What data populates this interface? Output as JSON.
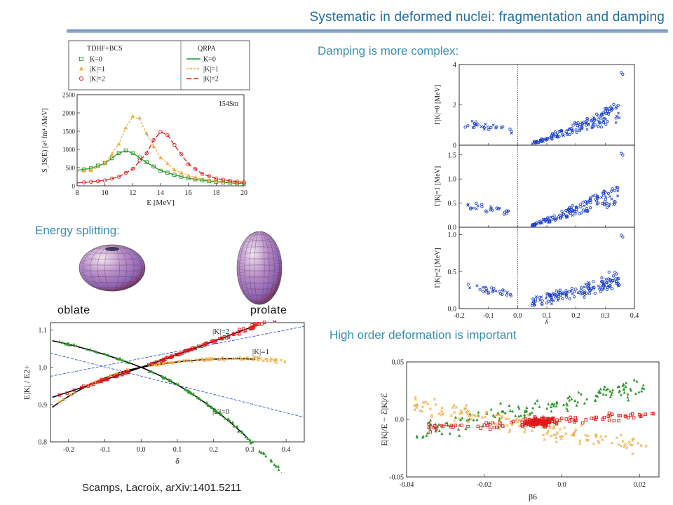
{
  "slide": {
    "title": "Systematic in deformed nuclei: fragmentation and damping",
    "damping_heading": "Damping is more complex:",
    "energy_heading": "Energy splitting:",
    "high_order_heading": "High order deformation is important",
    "oblate_label": "oblate",
    "prolate_label": "prolate",
    "citation": "Scamps, Lacroix, arXiv:1401.5211"
  },
  "colors": {
    "title": "#1f6ea0",
    "heading": "#3b8fb0",
    "k0": "#2a9a2a",
    "k1": "#f2a93a",
    "k2": "#e01818",
    "blue": "#1a3fd0"
  },
  "chart_data": [
    {
      "type": "line",
      "nucleus": "154Sm",
      "xlabel": "E [MeV]",
      "ylabel": "S_IS(E) [e² fm⁴ /MeV]",
      "xlim": [
        8,
        20
      ],
      "ylim": [
        0,
        2500
      ],
      "xticks": [
        8,
        10,
        12,
        14,
        16,
        18,
        20
      ],
      "yticks": [
        0,
        500,
        1000,
        1500,
        2000,
        2500
      ],
      "legend": {
        "tdhf_title": "TDHF+BCS",
        "qrpa_title": "QRPA",
        "k0": "K=0",
        "k1": "|K|=1",
        "k2": "|K|=2"
      },
      "series": [
        {
          "name": "K=0",
          "x": [
            8,
            9,
            10,
            11,
            11.5,
            12,
            13,
            14,
            15,
            16,
            17,
            18,
            19,
            20
          ],
          "values": [
            430,
            480,
            620,
            900,
            960,
            900,
            640,
            420,
            300,
            210,
            150,
            110,
            80,
            60
          ]
        },
        {
          "name": "|K|=1",
          "x": [
            8,
            9,
            10,
            11,
            11.5,
            12,
            12.5,
            13,
            14,
            15,
            16,
            17,
            18,
            19,
            20
          ],
          "values": [
            380,
            420,
            620,
            1150,
            1600,
            1900,
            1820,
            1420,
            780,
            440,
            280,
            190,
            130,
            100,
            80
          ]
        },
        {
          "name": "|K|=2",
          "x": [
            8,
            9,
            10,
            11,
            12,
            13,
            13.5,
            14,
            14.5,
            15,
            16,
            17,
            18,
            19,
            20
          ],
          "values": [
            80,
            110,
            150,
            250,
            460,
            900,
            1250,
            1480,
            1400,
            1120,
            600,
            330,
            200,
            140,
            100
          ]
        }
      ]
    },
    {
      "type": "scatter",
      "xlabel": "δ",
      "xlim": [
        -0.2,
        0.4
      ],
      "xticks": [
        -0.2,
        -0.1,
        0.0,
        0.1,
        0.2,
        0.3,
        0.4
      ],
      "panels": [
        {
          "ylabel": "Γ|K|=0 [MeV]",
          "ylim": [
            0,
            4
          ],
          "yticks": [
            0,
            2,
            4
          ]
        },
        {
          "ylabel": "Γ|K|=1 [MeV]",
          "ylim": [
            0,
            1.7
          ],
          "yticks": [
            0.0,
            0.5,
            1.0,
            1.5
          ]
        },
        {
          "ylabel": "Γ|K|=2 [MeV]",
          "ylim": [
            0,
            1.1
          ],
          "yticks": [
            0.0,
            0.5,
            1.0
          ]
        }
      ]
    },
    {
      "type": "scatter",
      "xlabel": "δ",
      "ylabel": "E|K| / E2+",
      "xlim": [
        -0.25,
        0.45
      ],
      "ylim": [
        0.8,
        1.12
      ],
      "xticks": [
        -0.2,
        -0.1,
        0.0,
        0.1,
        0.2,
        0.3,
        0.4
      ],
      "yticks": [
        0.8,
        0.9,
        1.0,
        1.1
      ],
      "annotations": [
        "|K|=2",
        "|K|=1",
        "|K|=0"
      ]
    },
    {
      "type": "scatter",
      "xlabel": "β6",
      "ylabel": "E|K|/E − ℰ|K|/ℰ",
      "xlim": [
        -0.04,
        0.025
      ],
      "ylim": [
        -0.05,
        0.05
      ],
      "xticks": [
        -0.04,
        -0.02,
        0.0,
        0.02
      ],
      "yticks": [
        -0.05,
        0.0,
        0.05
      ]
    }
  ]
}
